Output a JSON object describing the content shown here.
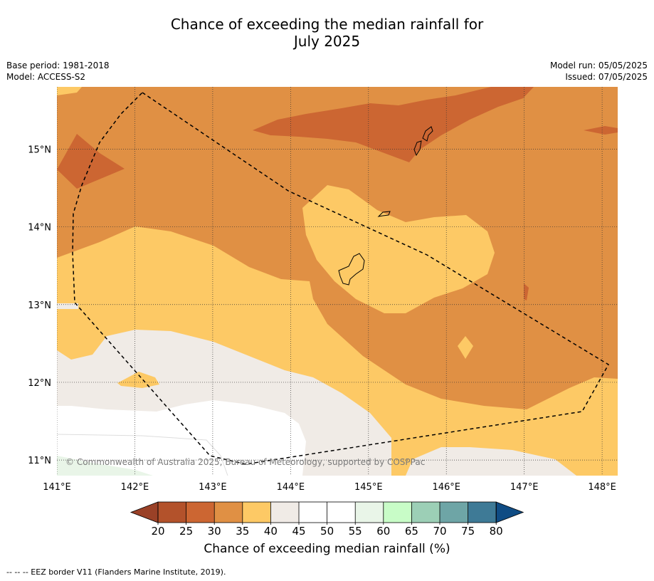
{
  "title_line1": "Chance of exceeding the median rainfall for",
  "title_line2": "July 2025",
  "base_period": "Base period: 1981-2018",
  "model": "Model: ACCESS-S2",
  "model_run": "Model run: 05/05/2025",
  "issued": "Issued: 07/05/2025",
  "copyright": "© Commonwealth of Australia 2025, Bureau of Meteorology, supported by COSPPac",
  "lat_labels": [
    "15°N",
    "14°N",
    "13°N",
    "12°N",
    "11°N"
  ],
  "lon_labels": [
    "141°E",
    "142°E",
    "143°E",
    "144°E",
    "145°E",
    "146°E",
    "147°E",
    "148°E"
  ],
  "colorbar": {
    "ticks": [
      "20",
      "25",
      "30",
      "35",
      "40",
      "45",
      "50",
      "55",
      "60",
      "65",
      "70",
      "75",
      "80"
    ],
    "under_color": "#9a4127",
    "colors": [
      "#b3522b",
      "#cc6632",
      "#e09044",
      "#fdc965",
      "#f0ebe6",
      "#ffffff",
      "#ffffff",
      "#e9f5e8",
      "#c8fcc7",
      "#9ccfb6",
      "#6ea5a6",
      "#3e7a96"
    ],
    "over_color": "#0f4c84",
    "label": "Chance of exceeding median rainfall (%)"
  },
  "legend_footer": "--  --  -- EEZ border V11 (Flanders Marine Institute, 2019).",
  "map": {
    "lon_range": [
      141,
      148.2
    ],
    "lat_range": [
      10.8,
      15.8
    ],
    "category_colors": {
      "c25_30": "#cc6632",
      "c30_35": "#e09044",
      "c35_40": "#fdc965",
      "c40_45": "#f0ebe6",
      "c50_55": "#ffffff",
      "c55_60": "#e9f5e8"
    }
  }
}
